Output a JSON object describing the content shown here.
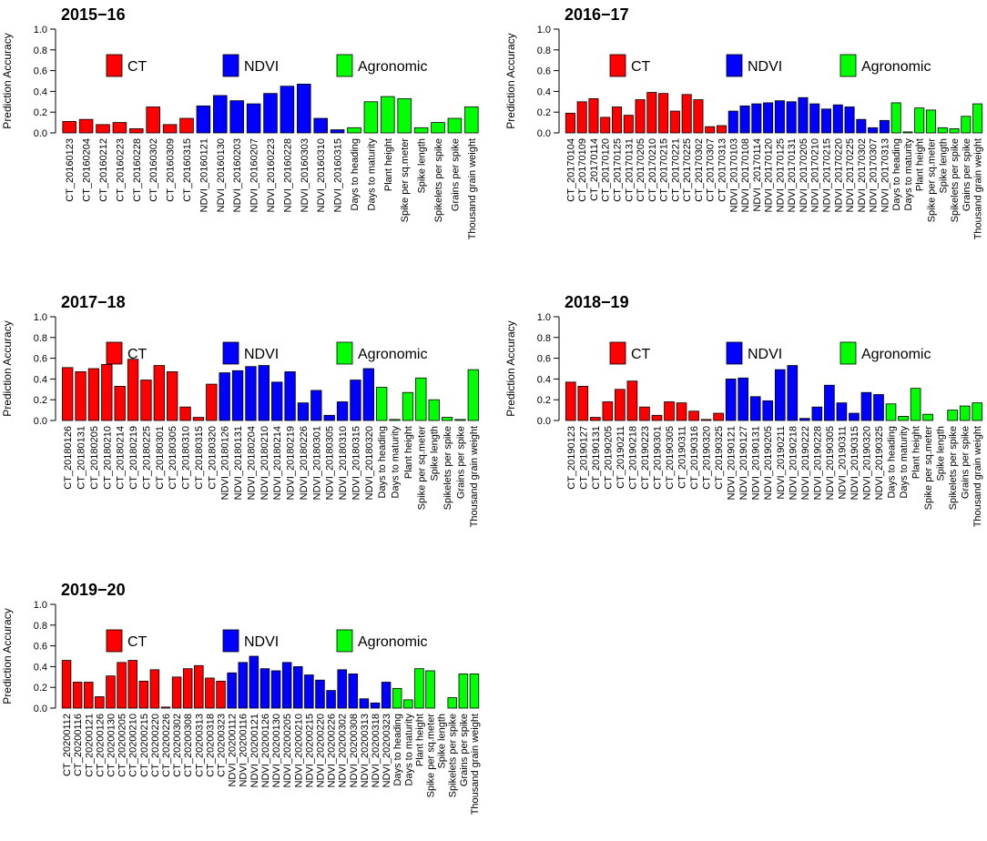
{
  "figure": {
    "ylabel": "Prediction Accuracy"
  },
  "legend_entries": [
    {
      "label": "CT",
      "color": "#ff0000"
    },
    {
      "label": "NDVI",
      "color": "#0000ff"
    },
    {
      "label": "Agronomic",
      "color": "#00ff00"
    }
  ],
  "chart_data": [
    {
      "type": "bar",
      "title": "2015−16",
      "ylabel": "Prediction Accuracy",
      "xlabel": "",
      "ylim": [
        0,
        1
      ],
      "yticks": [
        "0.0",
        "0.2",
        "0.4",
        "0.6",
        "0.8",
        "1.0"
      ],
      "legend_position": "top",
      "categories": [
        "CT_20160123",
        "CT_20160204",
        "CT_20160212",
        "CT_20160223",
        "CT_20160228",
        "CT_20160302",
        "CT_20160309",
        "CT_20160315",
        "NDVI_20160121",
        "NDVI_20160130",
        "NDVI_20160203",
        "NDVI_20160207",
        "NDVI_20160223",
        "NDVI_20160228",
        "NDVI_20160303",
        "NDVI_20160310",
        "NDVI_20160315",
        "Days to heading",
        "Days to maturity",
        "Plant height",
        "Spike per sq.meter",
        "Spike length",
        "Spikelets per spike",
        "Grains per spike",
        "Thousand grain weight"
      ],
      "groups": [
        "CT",
        "CT",
        "CT",
        "CT",
        "CT",
        "CT",
        "CT",
        "CT",
        "NDVI",
        "NDVI",
        "NDVI",
        "NDVI",
        "NDVI",
        "NDVI",
        "NDVI",
        "NDVI",
        "NDVI",
        "Agronomic",
        "Agronomic",
        "Agronomic",
        "Agronomic",
        "Agronomic",
        "Agronomic",
        "Agronomic",
        "Agronomic"
      ],
      "values": [
        0.11,
        0.13,
        0.08,
        0.1,
        0.04,
        0.25,
        0.08,
        0.14,
        0.26,
        0.36,
        0.31,
        0.28,
        0.38,
        0.45,
        0.47,
        0.14,
        0.03,
        0.05,
        0.3,
        0.35,
        0.33,
        0.05,
        0.1,
        0.14,
        0.25
      ]
    },
    {
      "type": "bar",
      "title": "2016−17",
      "ylabel": "Prediction Accuracy",
      "xlabel": "",
      "ylim": [
        0,
        1
      ],
      "yticks": [
        "0.0",
        "0.2",
        "0.4",
        "0.6",
        "0.8",
        "1.0"
      ],
      "legend_position": "top",
      "categories": [
        "CT_20170104",
        "CT_20170109",
        "CT_20170114",
        "CT_20170120",
        "CT_20170125",
        "CT_20170131",
        "CT_20170205",
        "CT_20170210",
        "CT_20170215",
        "CT_20170221",
        "CT_20170225",
        "CT_20170302",
        "CT_20170307",
        "CT_20170313",
        "NDVI_20170103",
        "NDVI_20170108",
        "NDVI_20170114",
        "NDVI_20170120",
        "NDVI_20170125",
        "NDVI_20170131",
        "NDVI_20170205",
        "NDVI_20170210",
        "NDVI_20170215",
        "NDVI_20170220",
        "NDVI_20170225",
        "NDVI_20170302",
        "NDVI_20170307",
        "NDVI_20170313",
        "Days to heading",
        "Days to maturity",
        "Plant height",
        "Spike per sq.meter",
        "Spike length",
        "Spikelets per spike",
        "Grains per spike",
        "Thousand grain weight"
      ],
      "groups": [
        "CT",
        "CT",
        "CT",
        "CT",
        "CT",
        "CT",
        "CT",
        "CT",
        "CT",
        "CT",
        "CT",
        "CT",
        "CT",
        "CT",
        "NDVI",
        "NDVI",
        "NDVI",
        "NDVI",
        "NDVI",
        "NDVI",
        "NDVI",
        "NDVI",
        "NDVI",
        "NDVI",
        "NDVI",
        "NDVI",
        "NDVI",
        "NDVI",
        "Agronomic",
        "Agronomic",
        "Agronomic",
        "Agronomic",
        "Agronomic",
        "Agronomic",
        "Agronomic",
        "Agronomic"
      ],
      "values": [
        0.19,
        0.3,
        0.33,
        0.15,
        0.25,
        0.17,
        0.32,
        0.39,
        0.38,
        0.21,
        0.37,
        0.32,
        0.06,
        0.07,
        0.21,
        0.26,
        0.28,
        0.29,
        0.31,
        0.3,
        0.34,
        0.28,
        0.23,
        0.27,
        0.25,
        0.13,
        0.05,
        0.12,
        0.29,
        0.01,
        0.24,
        0.22,
        0.05,
        0.04,
        0.16,
        0.28
      ]
    },
    {
      "type": "bar",
      "title": "2017−18",
      "ylabel": "Prediction Accuracy",
      "xlabel": "",
      "ylim": [
        0,
        1
      ],
      "yticks": [
        "0.0",
        "0.2",
        "0.4",
        "0.6",
        "0.8",
        "1.0"
      ],
      "legend_position": "top",
      "categories": [
        "CT_20180126",
        "CT_20180131",
        "CT_20180205",
        "CT_20180210",
        "CT_20180214",
        "CT_20180219",
        "CT_20180225",
        "CT_20180301",
        "CT_20180305",
        "CT_20180310",
        "CT_20180315",
        "CT_20180320",
        "NDVI_20180126",
        "NDVI_20180131",
        "NDVI_20180204",
        "NDVI_20180210",
        "NDVI_20180214",
        "NDVI_20180219",
        "NDVI_20180226",
        "NDVI_20180301",
        "NDVI_20180305",
        "NDVI_20180310",
        "NDVI_20180315",
        "NDVI_20180320",
        "Days to heading",
        "Days to maturity",
        "Plant height",
        "Spike per sq.meter",
        "Spike length",
        "Spikelets per spike",
        "Grains per spike",
        "Thousand grain weight"
      ],
      "groups": [
        "CT",
        "CT",
        "CT",
        "CT",
        "CT",
        "CT",
        "CT",
        "CT",
        "CT",
        "CT",
        "CT",
        "CT",
        "NDVI",
        "NDVI",
        "NDVI",
        "NDVI",
        "NDVI",
        "NDVI",
        "NDVI",
        "NDVI",
        "NDVI",
        "NDVI",
        "NDVI",
        "NDVI",
        "Agronomic",
        "Agronomic",
        "Agronomic",
        "Agronomic",
        "Agronomic",
        "Agronomic",
        "Agronomic",
        "Agronomic"
      ],
      "values": [
        0.51,
        0.47,
        0.5,
        0.54,
        0.33,
        0.59,
        0.39,
        0.53,
        0.47,
        0.13,
        0.03,
        0.35,
        0.46,
        0.48,
        0.52,
        0.53,
        0.37,
        0.47,
        0.17,
        0.29,
        0.05,
        0.18,
        0.39,
        0.5,
        0.32,
        0.01,
        0.27,
        0.41,
        0.2,
        0.03,
        0.01,
        0.49
      ]
    },
    {
      "type": "bar",
      "title": "2018−19",
      "ylabel": "Prediction Accuracy",
      "xlabel": "",
      "ylim": [
        0,
        1
      ],
      "yticks": [
        "0.0",
        "0.2",
        "0.4",
        "0.6",
        "0.8",
        "1.0"
      ],
      "legend_position": "top",
      "categories": [
        "CT_20190123",
        "CT_20190127",
        "CT_20190131",
        "CT_20190205",
        "CT_20190211",
        "CT_20190218",
        "CT_20190223",
        "CT_20190301",
        "CT_20190305",
        "CT_20190311",
        "CT_20190316",
        "CT_20190320",
        "CT_20190325",
        "NDVI_20190121",
        "NDVI_20190127",
        "NDVI_20190131",
        "NDVI_20190205",
        "NDVI_20190211",
        "NDVI_20190218",
        "NDVI_20190222",
        "NDVI_20190228",
        "NDVI_20190305",
        "NDVI_20190311",
        "NDVI_20190315",
        "NDVI_20190320",
        "NDVI_20190325",
        "Days to heading",
        "Days to maturity",
        "Plant height",
        "Spike per sq.meter",
        "Spike length",
        "Spikelets per spike",
        "Grains per spike",
        "Thousand grain weight"
      ],
      "groups": [
        "CT",
        "CT",
        "CT",
        "CT",
        "CT",
        "CT",
        "CT",
        "CT",
        "CT",
        "CT",
        "CT",
        "CT",
        "CT",
        "NDVI",
        "NDVI",
        "NDVI",
        "NDVI",
        "NDVI",
        "NDVI",
        "NDVI",
        "NDVI",
        "NDVI",
        "NDVI",
        "NDVI",
        "NDVI",
        "NDVI",
        "Agronomic",
        "Agronomic",
        "Agronomic",
        "Agronomic",
        "Agronomic",
        "Agronomic",
        "Agronomic",
        "Agronomic"
      ],
      "values": [
        0.37,
        0.33,
        0.03,
        0.18,
        0.3,
        0.38,
        0.13,
        0.05,
        0.18,
        0.17,
        0.09,
        0.01,
        0.07,
        0.4,
        0.41,
        0.23,
        0.19,
        0.49,
        0.53,
        0.02,
        0.13,
        0.34,
        0.17,
        0.07,
        0.27,
        0.25,
        0.16,
        0.04,
        0.31,
        0.06,
        0.0,
        0.1,
        0.14,
        0.17
      ]
    },
    {
      "type": "bar",
      "title": "2019−20",
      "ylabel": "Prediction Accuracy",
      "xlabel": "",
      "ylim": [
        0,
        1
      ],
      "yticks": [
        "0.0",
        "0.2",
        "0.4",
        "0.6",
        "0.8",
        "1.0"
      ],
      "legend_position": "top",
      "categories": [
        "CT_20200112",
        "CT_20200116",
        "CT_20200121",
        "CT_20200126",
        "CT_20200130",
        "CT_20200205",
        "CT_20200210",
        "CT_20200215",
        "CT_20200220",
        "CT_20200226",
        "CT_20200302",
        "CT_20200308",
        "CT_20200313",
        "CT_20200318",
        "CT_20200323",
        "NDVI_20200112",
        "NDVI_20200116",
        "NDVI_20200121",
        "NDVI_20200126",
        "NDVI_20200130",
        "NDVI_20200205",
        "NDVI_20200210",
        "NDVI_20200215",
        "NDVI_20200220",
        "NDVI_20200226",
        "NDVI_20200302",
        "NDVI_20200308",
        "NDVI_20200313",
        "NDVI_20200318",
        "NDVI_20200323",
        "Days to heading",
        "Days to maturity",
        "Plant height",
        "Spike per sq.meter",
        "Spike length",
        "Spikelets per spike",
        "Grains per spike",
        "Thousand grain weight"
      ],
      "groups": [
        "CT",
        "CT",
        "CT",
        "CT",
        "CT",
        "CT",
        "CT",
        "CT",
        "CT",
        "CT",
        "CT",
        "CT",
        "CT",
        "CT",
        "CT",
        "NDVI",
        "NDVI",
        "NDVI",
        "NDVI",
        "NDVI",
        "NDVI",
        "NDVI",
        "NDVI",
        "NDVI",
        "NDVI",
        "NDVI",
        "NDVI",
        "NDVI",
        "NDVI",
        "NDVI",
        "Agronomic",
        "Agronomic",
        "Agronomic",
        "Agronomic",
        "Agronomic",
        "Agronomic",
        "Agronomic",
        "Agronomic"
      ],
      "values": [
        0.46,
        0.25,
        0.25,
        0.11,
        0.31,
        0.44,
        0.46,
        0.26,
        0.37,
        0.01,
        0.3,
        0.38,
        0.41,
        0.29,
        0.26,
        0.34,
        0.44,
        0.5,
        0.38,
        0.36,
        0.44,
        0.4,
        0.32,
        0.27,
        0.17,
        0.37,
        0.33,
        0.09,
        0.05,
        0.25,
        0.19,
        0.08,
        0.38,
        0.36,
        0.0,
        0.1,
        0.33,
        0.33
      ]
    }
  ]
}
